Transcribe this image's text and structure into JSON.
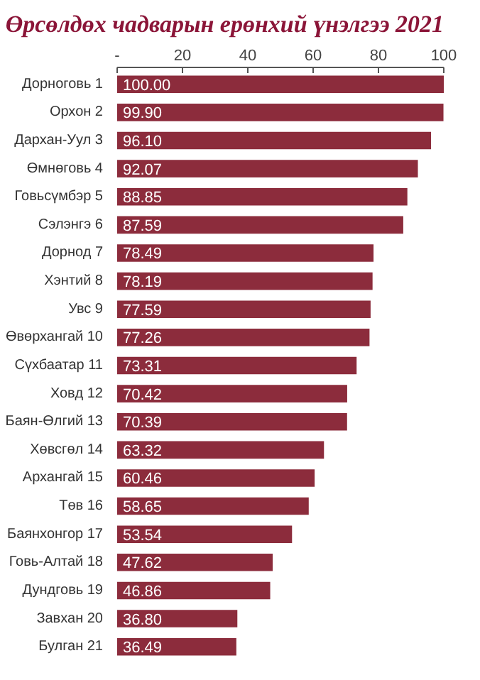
{
  "chart_data": {
    "type": "bar",
    "orientation": "horizontal",
    "title": "Өрсөлдөх чадварын ерөнхий үнэлгээ 2021",
    "categories": [
      "Дорноговь 1",
      "Орхон 2",
      "Дархан-Уул 3",
      "Өмнөговь 4",
      "Говьсүмбэр 5",
      "Сэлэнгэ 6",
      "Дорнод 7",
      "Хэнтий 8",
      "Увс 9",
      "Өвөрхангай 10",
      "Сүхбаатар 11",
      "Ховд 12",
      "Баян-Өлгий 13",
      "Хөвсгөл 14",
      "Архангай 15",
      "Төв 16",
      "Баянхонгор 17",
      "Говь-Алтай 18",
      "Дундговь 19",
      "Завхан 20",
      "Булган 21"
    ],
    "values": [
      100.0,
      99.9,
      96.1,
      92.07,
      88.85,
      87.59,
      78.49,
      78.19,
      77.59,
      77.26,
      73.31,
      70.42,
      70.39,
      63.32,
      60.46,
      58.65,
      53.54,
      47.62,
      46.86,
      36.8,
      36.49
    ],
    "value_labels": [
      "100.00",
      "99.90",
      "96.10",
      "92.07",
      "88.85",
      "87.59",
      "78.49",
      "78.19",
      "77.59",
      "77.26",
      "73.31",
      "70.42",
      "70.39",
      "63.32",
      "60.46",
      "58.65",
      "53.54",
      "47.62",
      "46.86",
      "36.80",
      "36.49"
    ],
    "color": "#8c2c3c",
    "xlim": [
      0,
      100
    ],
    "xticks": [
      {
        "value": 0,
        "label": "-"
      },
      20,
      40,
      60,
      80,
      100
    ],
    "grid": false
  }
}
